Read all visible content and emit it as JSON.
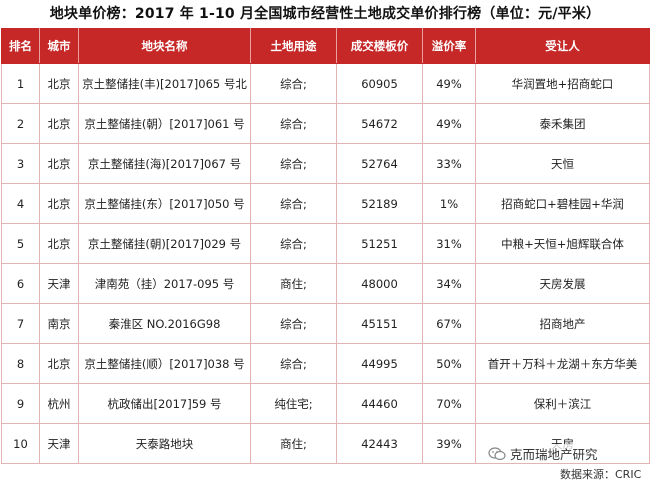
{
  "title": "地块单价榜：2017 年 1-10 月全国城市经营性土地成交单价排行榜（单位：元/平米）",
  "headers": [
    "排名",
    "城市",
    "地块名称",
    "土地用途",
    "成交楼板价",
    "溢价率",
    "受让人"
  ],
  "rows": [
    {
      "rank": "1",
      "city": "北京",
      "name": "京土整储挂(丰)[2017]065 号北",
      "use": "综合;",
      "price": "60905",
      "premium": "49%",
      "buyer": "华润置地+招商蛇口"
    },
    {
      "rank": "2",
      "city": "北京",
      "name": "京土整储挂(朝）[2017]061 号",
      "use": "综合;",
      "price": "54672",
      "premium": "49%",
      "buyer": "泰禾集团"
    },
    {
      "rank": "3",
      "city": "北京",
      "name": "京土整储挂(海)[2017]067 号",
      "use": "综合;",
      "price": "52764",
      "premium": "33%",
      "buyer": "天恒"
    },
    {
      "rank": "4",
      "city": "北京",
      "name": "京土整储挂(东）[2017]050 号",
      "use": "综合;",
      "price": "52189",
      "premium": "1%",
      "buyer": "招商蛇口+碧桂园+华润"
    },
    {
      "rank": "5",
      "city": "北京",
      "name": "京土整储挂(朝)[2017]029 号",
      "use": "综合;",
      "price": "51251",
      "premium": "31%",
      "buyer": "中粮+天恒+旭辉联合体"
    },
    {
      "rank": "6",
      "city": "天津",
      "name": "津南苑（挂）2017-095 号",
      "use": "商住;",
      "price": "48000",
      "premium": "34%",
      "buyer": "天房发展"
    },
    {
      "rank": "7",
      "city": "南京",
      "name": "秦淮区 NO.2016G98",
      "use": "综合;",
      "price": "45151",
      "premium": "67%",
      "buyer": "招商地产"
    },
    {
      "rank": "8",
      "city": "北京",
      "name": "京土整储挂(顺）[2017]038 号",
      "use": "综合;",
      "price": "44995",
      "premium": "50%",
      "buyer": "首开＋万科＋龙湖＋东方华美"
    },
    {
      "rank": "9",
      "city": "杭州",
      "name": "杭政储出[2017]59 号",
      "use": "纯住宅;",
      "price": "44460",
      "premium": "70%",
      "buyer": "保利＋滨江"
    },
    {
      "rank": "10",
      "city": "天津",
      "name": "天泰路地块",
      "use": "商住;",
      "price": "42443",
      "premium": "39%",
      "buyer": "天房"
    }
  ],
  "watermark": "克而瑞地产研究",
  "source": "数据来源：CRIC",
  "icons": {
    "watermark": "wechat-icon"
  }
}
